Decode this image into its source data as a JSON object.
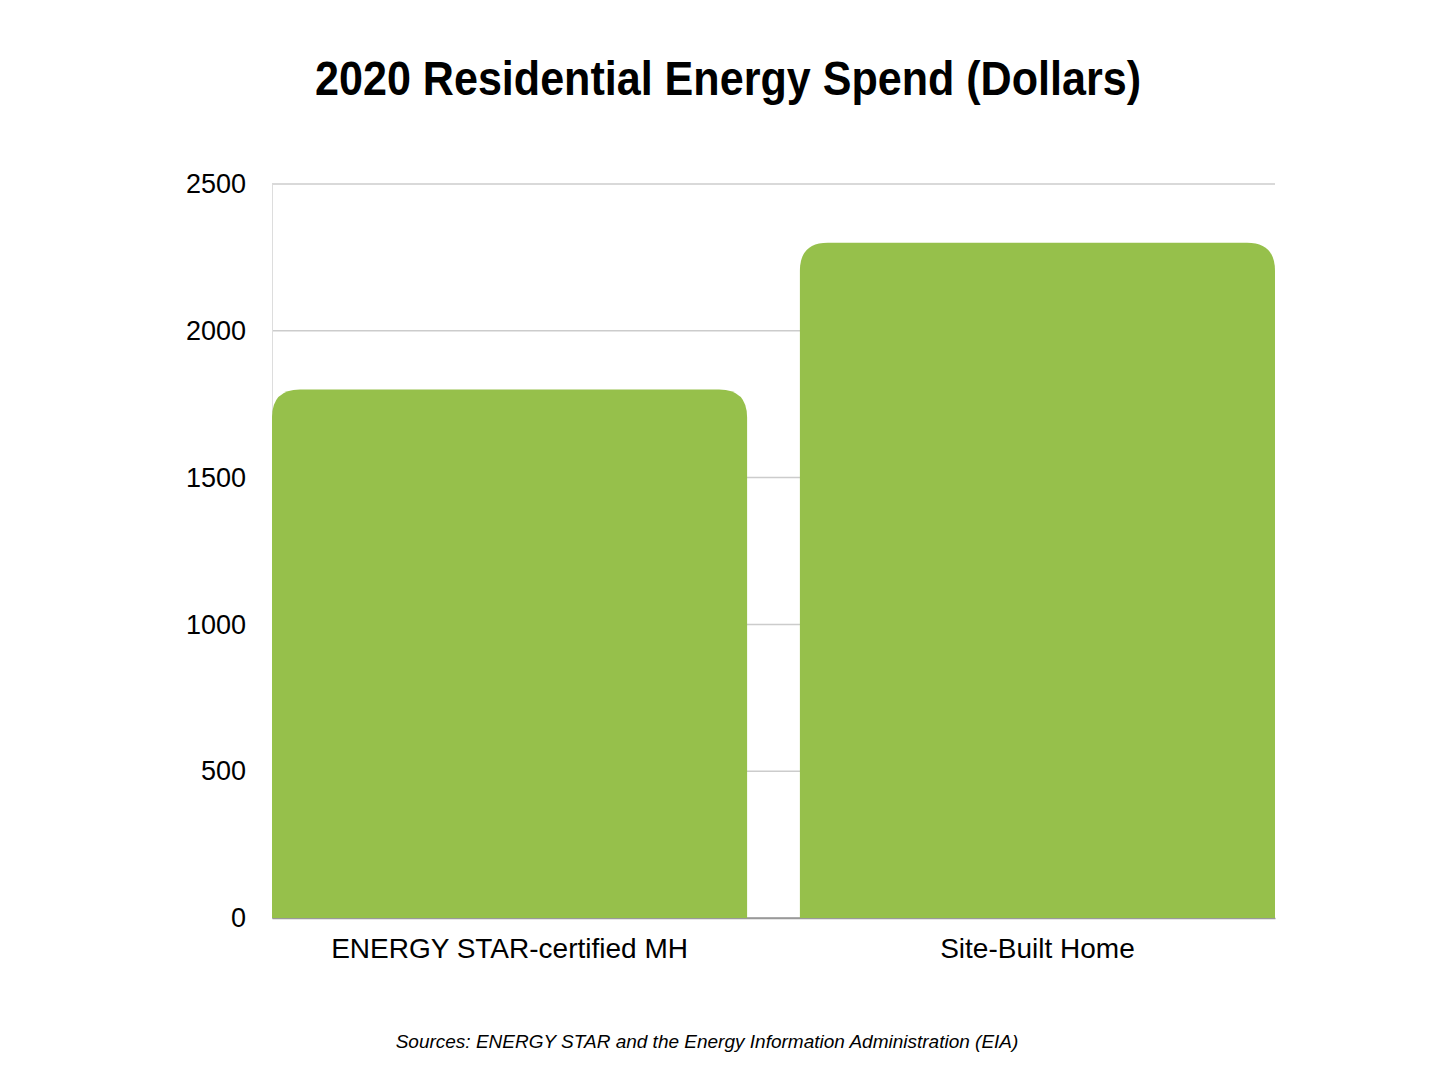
{
  "chart_data": {
    "type": "bar",
    "title": "2020 Residential Energy Spend (Dollars)",
    "categories": [
      "ENERGY STAR-certified MH",
      "Site-Built Home"
    ],
    "values": [
      1800,
      2300
    ],
    "color": "#96c04b",
    "ylim": [
      0,
      2500
    ],
    "yticks": [
      0,
      500,
      1000,
      1500,
      2000,
      2500
    ],
    "grid": true,
    "annotations": [
      "Sources: ENERGY STAR and the Energy Information Administration (EIA)"
    ]
  }
}
